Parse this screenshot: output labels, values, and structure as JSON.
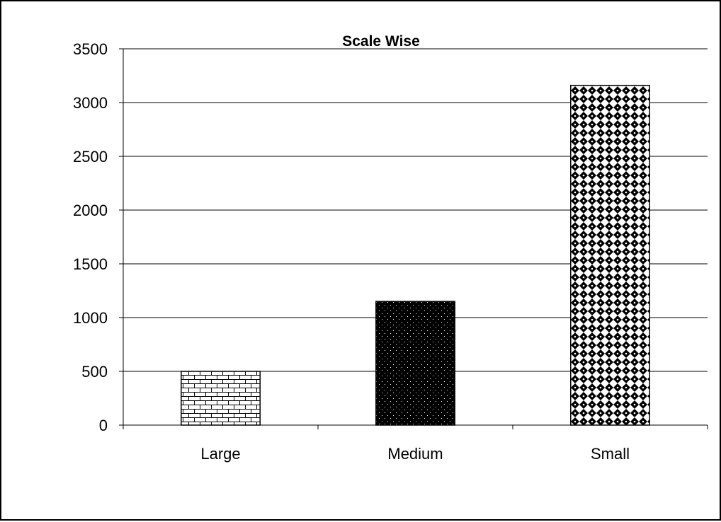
{
  "chart_data": {
    "type": "bar",
    "title": "Scale Wise",
    "xlabel": "",
    "ylabel": "",
    "categories": [
      "Large",
      "Medium",
      "Small"
    ],
    "values": [
      500,
      1150,
      3160
    ],
    "ylim": [
      0,
      3500
    ],
    "y_ticks": [
      "0",
      "500",
      "1000",
      "1500",
      "2000",
      "2500",
      "3000",
      "3500"
    ],
    "grid": true,
    "legend": "none",
    "colors": {
      "axis": "#000000",
      "grid": "#000000",
      "background": "#ffffff",
      "bar_outline": "#000000"
    },
    "bar_patterns": [
      "brick",
      "dotted-dark",
      "diamond-checker"
    ]
  }
}
